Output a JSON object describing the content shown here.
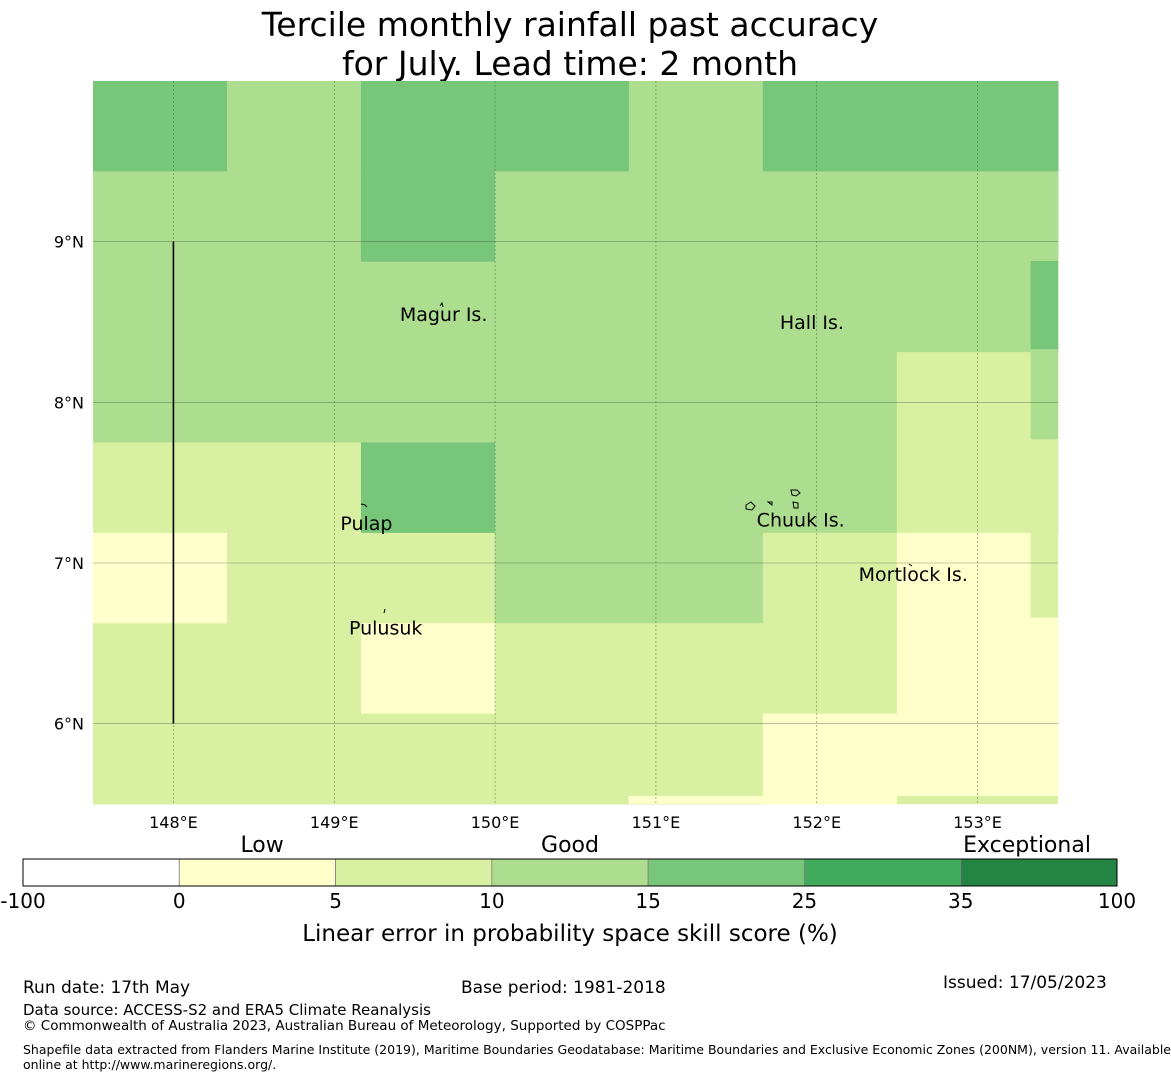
{
  "title": {
    "line1": "Tercile monthly rainfall past accuracy",
    "line2": "for July. Lead time: 2 month"
  },
  "map": {
    "lon_range": [
      147.5,
      153.5
    ],
    "lat_range": [
      5.5,
      10.0
    ],
    "x_ticks": [
      {
        "lon": 148,
        "label": "148°E"
      },
      {
        "lon": 149,
        "label": "149°E"
      },
      {
        "lon": 150,
        "label": "150°E"
      },
      {
        "lon": 151,
        "label": "151°E"
      },
      {
        "lon": 152,
        "label": "152°E"
      },
      {
        "lon": 153,
        "label": "153°E"
      }
    ],
    "y_ticks": [
      {
        "lat": 9,
        "label": "9°N"
      },
      {
        "lat": 8,
        "label": "8°N"
      },
      {
        "lat": 7,
        "label": "7°N"
      },
      {
        "lat": 6,
        "label": "6°N"
      }
    ],
    "grid_cell_deg": 0.833,
    "cell_skill_bins_by_row_north_to_south": [
      [
        15,
        10,
        15,
        15,
        10,
        15,
        15,
        15
      ],
      [
        10,
        10,
        15,
        10,
        10,
        10,
        10,
        10
      ],
      [
        10,
        10,
        10,
        10,
        10,
        10,
        10,
        10
      ],
      [
        10,
        10,
        10,
        10,
        10,
        10,
        5,
        5
      ],
      [
        5,
        5,
        15,
        10,
        10,
        10,
        5,
        5
      ],
      [
        0,
        5,
        5,
        10,
        10,
        5,
        0,
        0
      ],
      [
        5,
        5,
        0,
        5,
        5,
        5,
        0,
        0
      ],
      [
        5,
        5,
        5,
        5,
        5,
        0,
        0,
        0
      ]
    ],
    "extra_patches": [
      {
        "lon0": 153.33,
        "lon1": 153.5,
        "lat0": 8.33,
        "lat1": 8.88,
        "bin": 15
      },
      {
        "lon0": 153.33,
        "lon1": 153.5,
        "lat0": 7.77,
        "lat1": 8.33,
        "bin": 10
      },
      {
        "lon0": 153.33,
        "lon1": 153.5,
        "lat0": 6.66,
        "lat1": 7.22,
        "bin": 5
      },
      {
        "lon0": 150.83,
        "lon1": 151.67,
        "lat0": 5.5,
        "lat1": 5.55,
        "bin": 0
      },
      {
        "lon0": 152.5,
        "lon1": 153.5,
        "lat0": 5.5,
        "lat1": 5.55,
        "bin": 5
      }
    ],
    "boundary_line": {
      "lon": 148.0,
      "lat_from": 6.0,
      "lat_to": 9.0
    },
    "places": [
      {
        "name": "Magur Is.",
        "lon": 149.68,
        "lat": 8.55
      },
      {
        "name": "Hall Is.",
        "lon": 151.97,
        "lat": 8.5
      },
      {
        "name": "Pulap",
        "lon": 149.2,
        "lat": 7.25
      },
      {
        "name": "Chuuk Is.",
        "lon": 151.9,
        "lat": 7.27
      },
      {
        "name": "Mortlock Is.",
        "lon": 152.6,
        "lat": 6.93
      },
      {
        "name": "Pulusuk",
        "lon": 149.32,
        "lat": 6.6
      }
    ]
  },
  "legend": {
    "categories": [
      {
        "label": "Low"
      },
      {
        "label": "Good"
      },
      {
        "label": "Exceptional"
      }
    ],
    "bins": [
      {
        "from": "-100",
        "to": "0",
        "color": "#ffffff"
      },
      {
        "from": "0",
        "to": "5",
        "color": "#ffffcc"
      },
      {
        "from": "5",
        "to": "10",
        "color": "#d9f0a3"
      },
      {
        "from": "10",
        "to": "15",
        "color": "#addd8e"
      },
      {
        "from": "15",
        "to": "25",
        "color": "#78c679"
      },
      {
        "from": "25",
        "to": "35",
        "color": "#41ab5d"
      },
      {
        "from": "35",
        "to": "100",
        "color": "#238443"
      }
    ],
    "tick_labels": [
      "-100",
      "0",
      "5",
      "10",
      "15",
      "25",
      "35",
      "100"
    ],
    "axis_label": "Linear error in probability space skill score (%)"
  },
  "footer": {
    "run_date": "Run date: 17th May",
    "base_period": "Base period: 1981-2018",
    "issued": "Issued: 17/05/2023",
    "data_source": "Data source: ACCESS-S2 and ERA5 Climate Reanalysis",
    "copyright": "© Commonwealth of Australia 2023, Australian Bureau of Meteorology, Supported by COSPPac",
    "shapefile_line1": "Shapefile data extracted from Flanders Marine Institute (2019), Maritime Boundaries Geodatabase: Maritime Boundaries and Exclusive Economic Zones (200NM), version 11. Available",
    "shapefile_line2": "online at http://www.marineregions.org/."
  }
}
